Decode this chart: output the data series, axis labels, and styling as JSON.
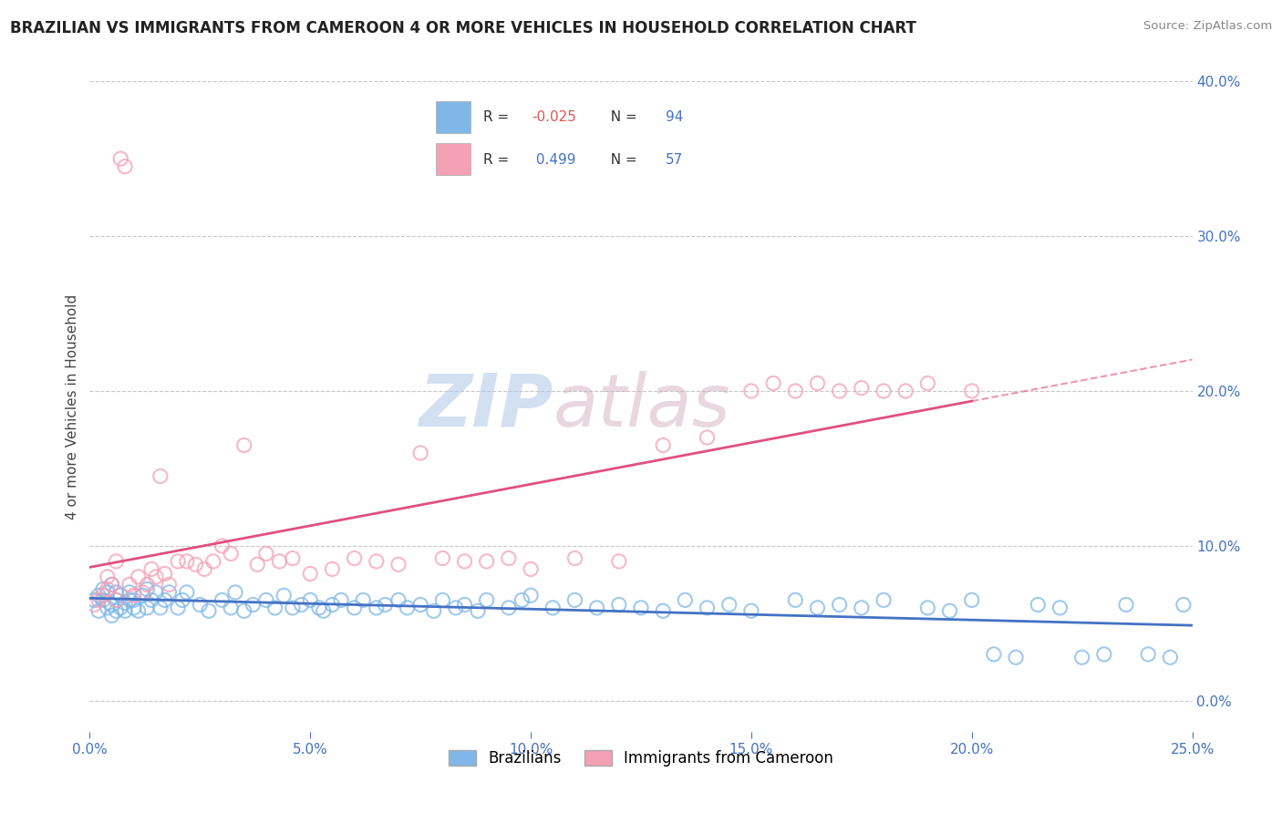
{
  "title": "BRAZILIAN VS IMMIGRANTS FROM CAMEROON 4 OR MORE VEHICLES IN HOUSEHOLD CORRELATION CHART",
  "source": "Source: ZipAtlas.com",
  "ylabel": "4 or more Vehicles in Household",
  "xlim": [
    0.0,
    0.25
  ],
  "ylim": [
    -0.02,
    0.4
  ],
  "xticks": [
    0.0,
    0.05,
    0.1,
    0.15,
    0.2,
    0.25
  ],
  "yticks": [
    0.0,
    0.1,
    0.2,
    0.3,
    0.4
  ],
  "ytick_labels": [
    "",
    "10.0%",
    "20.0%",
    "30.0%",
    "40.0%"
  ],
  "xtick_labels": [
    "0.0%",
    "5.0%",
    "10.0%",
    "15.0%",
    "20.0%",
    "25.0%"
  ],
  "brazilian_color": "#7fb8e8",
  "cameroon_color": "#f4a0b5",
  "brazilian_line_color": "#4472c4",
  "cameroon_line_color": "#e05080",
  "brazilian_R": -0.025,
  "brazilian_N": 94,
  "cameroon_R": 0.499,
  "cameroon_N": 57,
  "watermark_zip": "ZIP",
  "watermark_atlas": "atlas",
  "background_color": "#ffffff",
  "grid_color": "#c8c8c8",
  "legend_label_1": "Brazilians",
  "legend_label_2": "Immigrants from Cameroon",
  "brazilian_x": [
    0.001,
    0.002,
    0.002,
    0.003,
    0.003,
    0.004,
    0.004,
    0.005,
    0.005,
    0.005,
    0.006,
    0.006,
    0.006,
    0.007,
    0.007,
    0.008,
    0.008,
    0.009,
    0.009,
    0.01,
    0.01,
    0.011,
    0.012,
    0.013,
    0.013,
    0.014,
    0.015,
    0.016,
    0.017,
    0.018,
    0.02,
    0.021,
    0.022,
    0.025,
    0.027,
    0.03,
    0.032,
    0.033,
    0.035,
    0.037,
    0.04,
    0.042,
    0.044,
    0.046,
    0.048,
    0.05,
    0.052,
    0.053,
    0.055,
    0.057,
    0.06,
    0.062,
    0.065,
    0.067,
    0.07,
    0.072,
    0.075,
    0.078,
    0.08,
    0.083,
    0.085,
    0.088,
    0.09,
    0.095,
    0.098,
    0.1,
    0.105,
    0.11,
    0.115,
    0.12,
    0.125,
    0.13,
    0.135,
    0.14,
    0.145,
    0.15,
    0.16,
    0.165,
    0.17,
    0.175,
    0.18,
    0.19,
    0.195,
    0.2,
    0.205,
    0.21,
    0.215,
    0.22,
    0.225,
    0.23,
    0.235,
    0.24,
    0.245,
    0.248
  ],
  "brazilian_y": [
    0.065,
    0.068,
    0.058,
    0.065,
    0.072,
    0.06,
    0.07,
    0.055,
    0.062,
    0.075,
    0.058,
    0.065,
    0.07,
    0.06,
    0.068,
    0.063,
    0.058,
    0.065,
    0.07,
    0.06,
    0.065,
    0.058,
    0.068,
    0.06,
    0.072,
    0.065,
    0.07,
    0.06,
    0.065,
    0.07,
    0.06,
    0.065,
    0.07,
    0.062,
    0.058,
    0.065,
    0.06,
    0.07,
    0.058,
    0.062,
    0.065,
    0.06,
    0.068,
    0.06,
    0.062,
    0.065,
    0.06,
    0.058,
    0.062,
    0.065,
    0.06,
    0.065,
    0.06,
    0.062,
    0.065,
    0.06,
    0.062,
    0.058,
    0.065,
    0.06,
    0.062,
    0.058,
    0.065,
    0.06,
    0.065,
    0.068,
    0.06,
    0.065,
    0.06,
    0.062,
    0.06,
    0.058,
    0.065,
    0.06,
    0.062,
    0.058,
    0.065,
    0.06,
    0.062,
    0.06,
    0.065,
    0.06,
    0.058,
    0.065,
    0.03,
    0.028,
    0.062,
    0.06,
    0.028,
    0.03,
    0.062,
    0.03,
    0.028,
    0.062
  ],
  "cameroon_x": [
    0.001,
    0.002,
    0.003,
    0.004,
    0.004,
    0.005,
    0.006,
    0.006,
    0.007,
    0.008,
    0.009,
    0.01,
    0.011,
    0.012,
    0.013,
    0.014,
    0.015,
    0.016,
    0.017,
    0.018,
    0.02,
    0.022,
    0.024,
    0.026,
    0.028,
    0.03,
    0.032,
    0.035,
    0.038,
    0.04,
    0.043,
    0.046,
    0.05,
    0.055,
    0.06,
    0.065,
    0.07,
    0.075,
    0.08,
    0.085,
    0.09,
    0.095,
    0.1,
    0.11,
    0.12,
    0.13,
    0.14,
    0.15,
    0.155,
    0.16,
    0.165,
    0.17,
    0.175,
    0.18,
    0.185,
    0.19,
    0.2
  ],
  "cameroon_y": [
    0.062,
    0.065,
    0.068,
    0.072,
    0.08,
    0.075,
    0.065,
    0.09,
    0.35,
    0.345,
    0.075,
    0.068,
    0.08,
    0.07,
    0.075,
    0.085,
    0.08,
    0.145,
    0.082,
    0.075,
    0.09,
    0.09,
    0.088,
    0.085,
    0.09,
    0.1,
    0.095,
    0.165,
    0.088,
    0.095,
    0.09,
    0.092,
    0.082,
    0.085,
    0.092,
    0.09,
    0.088,
    0.16,
    0.092,
    0.09,
    0.09,
    0.092,
    0.085,
    0.092,
    0.09,
    0.165,
    0.17,
    0.2,
    0.205,
    0.2,
    0.205,
    0.2,
    0.202,
    0.2,
    0.2,
    0.205,
    0.2
  ]
}
